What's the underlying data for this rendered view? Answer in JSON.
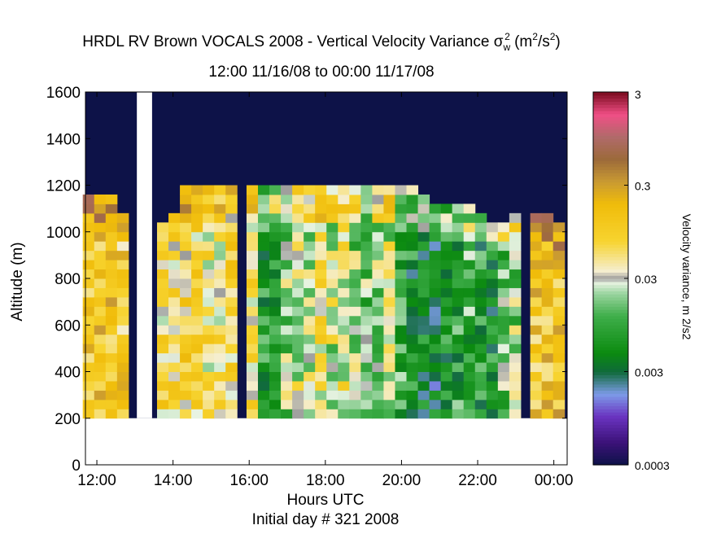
{
  "chart_data": {
    "type": "heatmap",
    "title": "HRDL RV Brown VOCALS 2008 - Vertical Velocity Variance",
    "title_symbol": "σ",
    "title_symbol_sub": "w",
    "title_symbol_sup": "2",
    "title_units_open": "(m",
    "title_units_sup1": "2",
    "title_units_mid": "/s",
    "title_units_sup2": "2",
    "title_units_close": ")",
    "subtitle": "12:00 11/16/08 to 00:00 11/17/08",
    "xlabel": "Hours UTC",
    "x_footer": "Initial day # 321  2008",
    "ylabel": "Altitude (m)",
    "x_ticks": [
      "12:00",
      "14:00",
      "16:00",
      "18:00",
      "20:00",
      "22:00",
      "00:00"
    ],
    "x_tick_hours": [
      12,
      14,
      16,
      18,
      20,
      22,
      24
    ],
    "xlim_hours": [
      11.7,
      24.35
    ],
    "y_ticks": [
      0,
      200,
      400,
      600,
      800,
      1000,
      1200,
      1400,
      1600
    ],
    "ylim": [
      0,
      1600
    ],
    "data_altitude_range_m": [
      200,
      1600
    ],
    "colorbar": {
      "label": "Velocity variance, m 2/s2",
      "tick_labels": [
        "3",
        "0.3",
        "0.03",
        "0.003",
        "0.0003"
      ],
      "tick_values": [
        3,
        0.3,
        0.03,
        0.003,
        0.0003
      ],
      "scale": "log",
      "range": [
        0.0003,
        3
      ]
    },
    "time_columns": [
      {
        "hour": 11.78,
        "top": 1130,
        "base": 0.12
      },
      {
        "hour": 12.08,
        "top": 1135,
        "base": 0.12
      },
      {
        "hour": 12.38,
        "top": 1130,
        "base": 0.13
      },
      {
        "hour": 12.68,
        "top": 1050,
        "base": 0.1
      },
      {
        "hour": 13.73,
        "top": 1040,
        "base": 0.06
      },
      {
        "hour": 14.03,
        "top": 1070,
        "base": 0.07
      },
      {
        "hour": 14.33,
        "top": 1170,
        "base": 0.08
      },
      {
        "hour": 14.63,
        "top": 1170,
        "base": 0.06
      },
      {
        "hour": 14.93,
        "top": 1180,
        "base": 0.05
      },
      {
        "hour": 15.23,
        "top": 1180,
        "base": 0.05
      },
      {
        "hour": 15.53,
        "top": 1190,
        "base": 0.07
      },
      {
        "hour": 16.08,
        "top": 1190,
        "base": 0.05
      },
      {
        "hour": 16.38,
        "top": 1200,
        "base": 0.007
      },
      {
        "hour": 16.68,
        "top": 1190,
        "base": 0.01
      },
      {
        "hour": 16.98,
        "top": 1180,
        "base": 0.02
      },
      {
        "hour": 17.28,
        "top": 1190,
        "base": 0.03
      },
      {
        "hour": 17.58,
        "top": 1180,
        "base": 0.03
      },
      {
        "hour": 17.88,
        "top": 1180,
        "base": 0.05
      },
      {
        "hour": 18.18,
        "top": 1185,
        "base": 0.03
      },
      {
        "hour": 18.48,
        "top": 1190,
        "base": 0.04
      },
      {
        "hour": 18.78,
        "top": 1190,
        "base": 0.02
      },
      {
        "hour": 19.08,
        "top": 1190,
        "base": 0.015
      },
      {
        "hour": 19.38,
        "top": 1180,
        "base": 0.02
      },
      {
        "hour": 19.68,
        "top": 1180,
        "base": 0.03
      },
      {
        "hour": 19.98,
        "top": 1200,
        "base": 0.01
      },
      {
        "hour": 20.28,
        "top": 1170,
        "base": 0.006
      },
      {
        "hour": 20.58,
        "top": 1140,
        "base": 0.005
      },
      {
        "hour": 20.88,
        "top": 1120,
        "base": 0.004
      },
      {
        "hour": 21.18,
        "top": 1120,
        "base": 0.006
      },
      {
        "hour": 21.48,
        "top": 1110,
        "base": 0.008
      },
      {
        "hour": 21.78,
        "top": 1100,
        "base": 0.01
      },
      {
        "hour": 22.08,
        "top": 1070,
        "base": 0.007
      },
      {
        "hour": 22.38,
        "top": 1040,
        "base": 0.006
      },
      {
        "hour": 22.68,
        "top": 1030,
        "base": 0.015
      },
      {
        "hour": 22.98,
        "top": 1050,
        "base": 0.02
      },
      {
        "hour": 23.53,
        "top": 1060,
        "base": 0.12
      },
      {
        "hour": 23.83,
        "top": 1070,
        "base": 0.13
      },
      {
        "hour": 24.13,
        "top": 1030,
        "base": 0.14
      }
    ],
    "missing_intervals_hours": [
      [
        13.05,
        13.45
      ]
    ]
  }
}
